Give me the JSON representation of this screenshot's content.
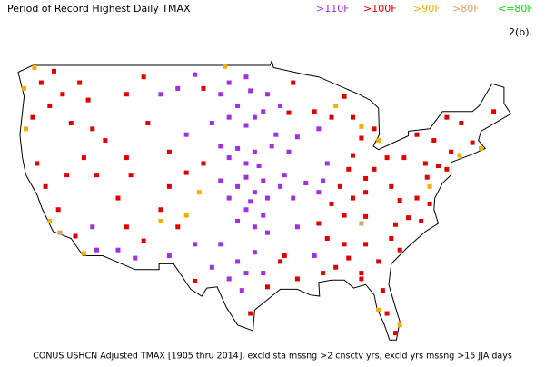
{
  "title": "Period of Record Highest Daily TMAX",
  "legend": [
    {
      "label": ">110F",
      "color": "#a030e0"
    },
    {
      "label": ">100F",
      "color": "#e00000"
    },
    {
      "label": ">90F",
      "color": "#f0b000"
    },
    {
      "label": ">80F",
      "color": "#e0a060"
    },
    {
      "label": "<=80F",
      "color": "#00e000"
    }
  ],
  "panel": "2(b).",
  "footer": "CONUS USHCN Adjusted TMAX [1905 thru 2014], excld sta mssng >2 cnsctv yrs, excld yrs mssng >15 JJA days",
  "stations": [
    [
      -100,
      47.5,
      0
    ],
    [
      -98,
      48,
      0
    ],
    [
      -101,
      46.5,
      0
    ],
    [
      -97.5,
      46.8,
      0
    ],
    [
      -100,
      44.5,
      0
    ],
    [
      -98,
      43.8,
      0
    ],
    [
      -102,
      44,
      0
    ],
    [
      -97,
      44.5,
      0
    ],
    [
      -99,
      45.5,
      0
    ],
    [
      -100,
      41,
      0
    ],
    [
      -98,
      40.5,
      0
    ],
    [
      -97,
      41.5,
      0
    ],
    [
      -101,
      42,
      0
    ],
    [
      -99,
      41.8,
      0
    ],
    [
      -96.5,
      40.3,
      0
    ],
    [
      -99,
      38.5,
      0
    ],
    [
      -97,
      38,
      0
    ],
    [
      -96,
      39,
      0
    ],
    [
      -100,
      37.5,
      0
    ],
    [
      -98,
      39.3,
      0
    ],
    [
      -95.5,
      37.5,
      0
    ],
    [
      -101,
      39,
      0
    ],
    [
      -97.5,
      37.2,
      0
    ],
    [
      -99,
      35.5,
      0
    ],
    [
      -97,
      35,
      0
    ],
    [
      -98,
      36.5,
      0
    ],
    [
      -96,
      36,
      0
    ],
    [
      -95.5,
      34.5,
      0
    ],
    [
      -101,
      33.5,
      0
    ],
    [
      -99,
      32,
      0
    ],
    [
      -98,
      31,
      0
    ],
    [
      -100,
      30.5,
      0
    ],
    [
      -97,
      32.8,
      0
    ],
    [
      -102,
      31.5,
      0
    ],
    [
      -98.5,
      29.5,
      0
    ],
    [
      -96,
      31,
      0
    ],
    [
      -94,
      38.5,
      0
    ],
    [
      -92.5,
      37.5,
      0
    ],
    [
      -93.5,
      39.5,
      0
    ],
    [
      -91,
      38.8,
      0
    ],
    [
      -95,
      42,
      0
    ],
    [
      -93,
      41.5,
      0
    ],
    [
      -92,
      42.8,
      0
    ],
    [
      -94.5,
      43,
      0
    ],
    [
      -89,
      39,
      0
    ],
    [
      -88.5,
      40.5,
      0
    ],
    [
      -89.5,
      38,
      0
    ],
    [
      -96,
      45,
      0
    ],
    [
      -94,
      45.5,
      0
    ],
    [
      -95.5,
      46.5,
      0
    ],
    [
      -106,
      47,
      0
    ],
    [
      -104,
      48.2,
      0
    ],
    [
      -108,
      46.5,
      0
    ],
    [
      -105,
      43,
      0
    ],
    [
      -104,
      33.5,
      0
    ],
    [
      -107,
      32.5,
      0
    ],
    [
      -113,
      33,
      0
    ],
    [
      -111,
      32.3,
      0
    ],
    [
      -116,
      35,
      0
    ],
    [
      -115.5,
      33,
      0
    ],
    [
      -89.5,
      43.5,
      0
    ],
    [
      -92,
      35,
      0
    ],
    [
      -90,
      32.5,
      0
    ],
    [
      -122,
      47.5,
      1
    ],
    [
      -119.5,
      46.5,
      1
    ],
    [
      -117.5,
      47.5,
      1
    ],
    [
      -120.5,
      48.5,
      1
    ],
    [
      -123,
      44.5,
      1
    ],
    [
      -118.5,
      44,
      1
    ],
    [
      -121,
      45.5,
      1
    ],
    [
      -116,
      43.5,
      1
    ],
    [
      -114.5,
      42.5,
      1
    ],
    [
      -116.5,
      46,
      1
    ],
    [
      -119,
      39.5,
      1
    ],
    [
      -115.5,
      39.5,
      1
    ],
    [
      -117,
      41,
      1
    ],
    [
      -121.5,
      38.5,
      1
    ],
    [
      -120,
      36.5,
      1
    ],
    [
      -122.5,
      40.5,
      1
    ],
    [
      -118,
      34.2,
      1
    ],
    [
      -112,
      41,
      1
    ],
    [
      -113,
      37.5,
      1
    ],
    [
      -111.5,
      39.5,
      1
    ],
    [
      -105,
      39.7,
      1
    ],
    [
      -103,
      40.5,
      1
    ],
    [
      -107,
      38.5,
      1
    ],
    [
      -112,
      46.5,
      1
    ],
    [
      -110,
      48,
      1
    ],
    [
      -107,
      41.5,
      1
    ],
    [
      -109.5,
      44,
      1
    ],
    [
      -103,
      47,
      1
    ],
    [
      -106,
      35,
      1
    ],
    [
      -108,
      36.5,
      1
    ],
    [
      -112,
      35,
      1
    ],
    [
      -110,
      33.8,
      1
    ],
    [
      -95.5,
      29.8,
      1
    ],
    [
      -94,
      32,
      1
    ],
    [
      -97.5,
      27.5,
      1
    ],
    [
      -104,
      30.3,
      1
    ],
    [
      -92,
      30.5,
      1
    ],
    [
      -93.5,
      32.5,
      1
    ],
    [
      -89,
      31,
      1
    ],
    [
      -88.5,
      34,
      1
    ],
    [
      -86.5,
      33.5,
      1
    ],
    [
      -87.5,
      31.5,
      1
    ],
    [
      -86,
      32.3,
      1
    ],
    [
      -84,
      33.5,
      1
    ],
    [
      -82.5,
      32,
      1
    ],
    [
      -84.5,
      31,
      1
    ],
    [
      -82,
      29.5,
      1
    ],
    [
      -81.5,
      27.5,
      1
    ],
    [
      -80.5,
      25.8,
      1
    ],
    [
      -84.5,
      30.5,
      1
    ],
    [
      -81,
      34,
      1
    ],
    [
      -80,
      33,
      1
    ],
    [
      -79,
      35.8,
      1
    ],
    [
      -80.5,
      35.2,
      1
    ],
    [
      -77.5,
      35.5,
      1
    ],
    [
      -86.5,
      36,
      1
    ],
    [
      -84,
      35.9,
      1
    ],
    [
      -89.5,
      35.3,
      1
    ],
    [
      -85.5,
      37.5,
      1
    ],
    [
      -88,
      37,
      1
    ],
    [
      -84,
      38,
      1
    ],
    [
      -78,
      37.5,
      1
    ],
    [
      -80,
      37.3,
      1
    ],
    [
      -76.5,
      37,
      1
    ],
    [
      -81,
      38.5,
      1
    ],
    [
      -83,
      40,
      1
    ],
    [
      -81.5,
      41,
      1
    ],
    [
      -84,
      39.2,
      1
    ],
    [
      -86,
      40,
      1
    ],
    [
      -87,
      38.5,
      1
    ],
    [
      -85.5,
      41.2,
      1
    ],
    [
      -84.5,
      42.7,
      1
    ],
    [
      -85.5,
      44.5,
      1
    ],
    [
      -83,
      43.5,
      1
    ],
    [
      -86.5,
      46.3,
      1
    ],
    [
      -90,
      45,
      1
    ],
    [
      -88,
      44.5,
      1
    ],
    [
      -93,
      44.9,
      1
    ],
    [
      -92.5,
      47.5,
      1
    ],
    [
      -77,
      40.5,
      1
    ],
    [
      -79.5,
      41,
      1
    ],
    [
      -75.5,
      40.3,
      1
    ],
    [
      -74,
      41.5,
      1
    ],
    [
      -76,
      42.5,
      1
    ],
    [
      -78,
      43,
      1
    ],
    [
      -74.5,
      44.5,
      1
    ],
    [
      -71.5,
      42.3,
      1
    ],
    [
      -69,
      45,
      1
    ],
    [
      -72.8,
      44,
      1
    ],
    [
      -74.5,
      40,
      1
    ],
    [
      -76.8,
      39.3,
      1
    ],
    [
      -124,
      47,
      2
    ],
    [
      -123.8,
      43.5,
      2
    ],
    [
      -122.8,
      48.8,
      2
    ],
    [
      -117,
      32.7,
      2
    ],
    [
      -121,
      35.5,
      2
    ],
    [
      -105,
      36,
      2
    ],
    [
      -100.5,
      48.9,
      2
    ],
    [
      -87.5,
      45.5,
      2
    ],
    [
      -82.5,
      42.5,
      2
    ],
    [
      -84.5,
      43.7,
      2
    ],
    [
      -73,
      41.2,
      2
    ],
    [
      -70.5,
      41.8,
      2
    ],
    [
      -80,
      26.5,
      2
    ],
    [
      -82.5,
      27.8,
      2
    ],
    [
      -76.5,
      38.5,
      2
    ],
    [
      -108,
      35.5,
      2
    ],
    [
      -103.5,
      38,
      2
    ],
    [
      -119.8,
      34.5,
      3
    ],
    [
      -84.5,
      35.3,
      3
    ]
  ]
}
